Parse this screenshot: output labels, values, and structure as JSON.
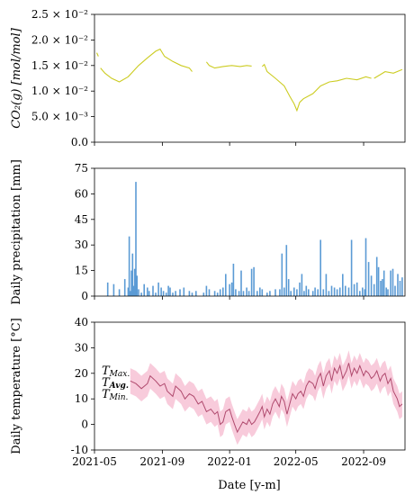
{
  "chart_data": [
    {
      "type": "line",
      "ylabel": "CO₂(g) [mol/mol]",
      "ylim": [
        0.0,
        0.025
      ],
      "yticks": [
        {
          "v": 0.025,
          "label": "2.5 × 10⁻²"
        },
        {
          "v": 0.02,
          "label": "2.0 × 10⁻²"
        },
        {
          "v": 0.015,
          "label": "1.5 × 10⁻²"
        },
        {
          "v": 0.01,
          "label": "1.0 × 10⁻²"
        },
        {
          "v": 0.005,
          "label": "5.0 × 10⁻³"
        },
        {
          "v": 0.0,
          "label": "0.0"
        }
      ],
      "color": "#cccc22",
      "segments": [
        [
          [
            "2021-05-05",
            0.0175
          ],
          [
            "2021-05-08",
            0.0168
          ]
        ],
        [
          [
            "2021-05-12",
            0.0145
          ],
          [
            "2021-05-20",
            0.0135
          ],
          [
            "2021-06-01",
            0.0125
          ],
          [
            "2021-06-15",
            0.0118
          ],
          [
            "2021-07-01",
            0.0128
          ],
          [
            "2021-07-20",
            0.015
          ],
          [
            "2021-08-05",
            0.0165
          ],
          [
            "2021-08-20",
            0.0178
          ],
          [
            "2021-08-28",
            0.0182
          ],
          [
            "2021-09-05",
            0.0168
          ],
          [
            "2021-09-20",
            0.0158
          ],
          [
            "2021-10-05",
            0.015
          ],
          [
            "2021-10-20",
            0.0145
          ],
          [
            "2021-10-25",
            0.0138
          ]
        ],
        [
          [
            "2021-11-20",
            0.0157
          ],
          [
            "2021-11-25",
            0.015
          ],
          [
            "2021-12-05",
            0.0145
          ],
          [
            "2021-12-20",
            0.0148
          ],
          [
            "2022-01-05",
            0.015
          ],
          [
            "2022-01-20",
            0.0148
          ],
          [
            "2022-02-01",
            0.015
          ],
          [
            "2022-02-10",
            0.0149
          ]
        ],
        [
          [
            "2022-03-01",
            0.0148
          ],
          [
            "2022-03-05",
            0.0152
          ],
          [
            "2022-03-10",
            0.0138
          ],
          [
            "2022-03-25",
            0.0125
          ],
          [
            "2022-04-10",
            0.011
          ],
          [
            "2022-04-20",
            0.009
          ],
          [
            "2022-04-28",
            0.0075
          ],
          [
            "2022-05-03",
            0.0062
          ],
          [
            "2022-05-08",
            0.0078
          ],
          [
            "2022-05-15",
            0.0085
          ],
          [
            "2022-06-01",
            0.0095
          ],
          [
            "2022-06-15",
            0.011
          ],
          [
            "2022-07-01",
            0.0118
          ],
          [
            "2022-07-15",
            0.012
          ],
          [
            "2022-08-01",
            0.0125
          ],
          [
            "2022-08-20",
            0.0122
          ],
          [
            "2022-09-05",
            0.0128
          ],
          [
            "2022-09-15",
            0.0125
          ]
        ],
        [
          [
            "2022-09-20",
            0.0125
          ],
          [
            "2022-10-01",
            0.0132
          ],
          [
            "2022-10-10",
            0.0138
          ],
          [
            "2022-10-25",
            0.0135
          ],
          [
            "2022-11-05",
            0.014
          ],
          [
            "2022-11-10",
            0.0142
          ]
        ]
      ]
    },
    {
      "type": "bar",
      "ylabel": "Daily precipitation [mm]",
      "ylim": [
        0,
        75
      ],
      "yticks": [
        75,
        60,
        45,
        30,
        15,
        0
      ],
      "color": "#5b9bd5",
      "bars": [
        [
          "2021-05-25",
          8
        ],
        [
          "2021-06-05",
          7
        ],
        [
          "2021-06-15",
          4
        ],
        [
          "2021-06-25",
          10
        ],
        [
          "2021-07-01",
          5
        ],
        [
          "2021-07-03",
          35
        ],
        [
          "2021-07-05",
          3
        ],
        [
          "2021-07-07",
          15
        ],
        [
          "2021-07-09",
          25
        ],
        [
          "2021-07-11",
          6
        ],
        [
          "2021-07-13",
          16
        ],
        [
          "2021-07-15",
          67
        ],
        [
          "2021-07-17",
          12
        ],
        [
          "2021-07-20",
          4
        ],
        [
          "2021-07-25",
          2
        ],
        [
          "2021-07-30",
          7
        ],
        [
          "2021-08-05",
          5
        ],
        [
          "2021-08-08",
          3
        ],
        [
          "2021-08-15",
          6
        ],
        [
          "2021-08-20",
          2
        ],
        [
          "2021-08-25",
          8
        ],
        [
          "2021-08-30",
          5
        ],
        [
          "2021-09-03",
          3
        ],
        [
          "2021-09-08",
          2
        ],
        [
          "2021-09-12",
          6
        ],
        [
          "2021-09-15",
          5
        ],
        [
          "2021-09-20",
          2
        ],
        [
          "2021-09-25",
          3
        ],
        [
          "2021-10-03",
          4
        ],
        [
          "2021-10-10",
          5
        ],
        [
          "2021-10-20",
          3
        ],
        [
          "2021-10-25",
          2
        ],
        [
          "2021-11-01",
          3
        ],
        [
          "2021-11-15",
          2
        ],
        [
          "2021-11-20",
          6
        ],
        [
          "2021-11-25",
          4
        ],
        [
          "2021-12-05",
          3
        ],
        [
          "2021-12-10",
          2
        ],
        [
          "2021-12-15",
          4
        ],
        [
          "2021-12-20",
          5
        ],
        [
          "2021-12-25",
          13
        ],
        [
          "2022-01-01",
          7
        ],
        [
          "2022-01-05",
          8
        ],
        [
          "2022-01-08",
          19
        ],
        [
          "2022-01-12",
          4
        ],
        [
          "2022-01-18",
          3
        ],
        [
          "2022-01-22",
          15
        ],
        [
          "2022-01-26",
          3
        ],
        [
          "2022-02-01",
          5
        ],
        [
          "2022-02-05",
          3
        ],
        [
          "2022-02-10",
          16
        ],
        [
          "2022-02-14",
          17
        ],
        [
          "2022-02-20",
          3
        ],
        [
          "2022-02-25",
          5
        ],
        [
          "2022-03-01",
          4
        ],
        [
          "2022-03-10",
          2
        ],
        [
          "2022-03-15",
          3
        ],
        [
          "2022-03-25",
          4
        ],
        [
          "2022-04-02",
          4
        ],
        [
          "2022-04-06",
          25
        ],
        [
          "2022-04-10",
          5
        ],
        [
          "2022-04-14",
          30
        ],
        [
          "2022-04-18",
          10
        ],
        [
          "2022-04-22",
          3
        ],
        [
          "2022-04-28",
          5
        ],
        [
          "2022-05-03",
          4
        ],
        [
          "2022-05-08",
          8
        ],
        [
          "2022-05-12",
          13
        ],
        [
          "2022-05-16",
          3
        ],
        [
          "2022-05-20",
          6
        ],
        [
          "2022-05-24",
          4
        ],
        [
          "2022-06-01",
          3
        ],
        [
          "2022-06-05",
          5
        ],
        [
          "2022-06-10",
          4
        ],
        [
          "2022-06-15",
          33
        ],
        [
          "2022-06-20",
          4
        ],
        [
          "2022-06-25",
          13
        ],
        [
          "2022-06-30",
          3
        ],
        [
          "2022-07-05",
          6
        ],
        [
          "2022-07-10",
          5
        ],
        [
          "2022-07-15",
          4
        ],
        [
          "2022-07-20",
          5
        ],
        [
          "2022-07-25",
          13
        ],
        [
          "2022-07-30",
          6
        ],
        [
          "2022-08-05",
          5
        ],
        [
          "2022-08-10",
          33
        ],
        [
          "2022-08-15",
          7
        ],
        [
          "2022-08-20",
          8
        ],
        [
          "2022-08-25",
          3
        ],
        [
          "2022-08-30",
          5
        ],
        [
          "2022-09-03",
          4
        ],
        [
          "2022-09-05",
          34
        ],
        [
          "2022-09-10",
          20
        ],
        [
          "2022-09-15",
          12
        ],
        [
          "2022-09-20",
          7
        ],
        [
          "2022-09-25",
          23
        ],
        [
          "2022-09-28",
          17
        ],
        [
          "2022-10-02",
          9
        ],
        [
          "2022-10-05",
          10
        ],
        [
          "2022-10-08",
          15
        ],
        [
          "2022-10-12",
          5
        ],
        [
          "2022-10-15",
          4
        ],
        [
          "2022-10-20",
          15
        ],
        [
          "2022-10-24",
          16
        ],
        [
          "2022-10-28",
          6
        ],
        [
          "2022-11-02",
          13
        ],
        [
          "2022-11-06",
          9
        ],
        [
          "2022-11-10",
          11
        ]
      ]
    },
    {
      "type": "area",
      "ylabel": "Daily temperature [°C]",
      "xlabel": "Date [y-m]",
      "ylim": [
        -10,
        40
      ],
      "yticks": [
        40,
        30,
        20,
        10,
        0,
        -10
      ],
      "xticks": [
        "2021-05",
        "2021-09",
        "2022-01",
        "2022-05",
        "2022-09"
      ],
      "xlim": [
        "2021-05-01",
        "2022-11-15"
      ],
      "colors": {
        "band": "#f5b9cf",
        "avg": "#b04a6e",
        "label": "#d4a0b2"
      },
      "legend": [
        {
          "main": "T",
          "sub": "Max.",
          "avg": false
        },
        {
          "main": "T",
          "sub": "Avg.",
          "avg": true
        },
        {
          "main": "T",
          "sub": "Min.",
          "avg": false
        }
      ],
      "avg": [
        [
          "2021-07-05",
          17
        ],
        [
          "2021-07-15",
          16
        ],
        [
          "2021-07-25",
          14
        ],
        [
          "2021-08-05",
          16
        ],
        [
          "2021-08-10",
          19
        ],
        [
          "2021-08-20",
          17
        ],
        [
          "2021-08-28",
          15
        ],
        [
          "2021-09-05",
          16
        ],
        [
          "2021-09-10",
          13
        ],
        [
          "2021-09-20",
          11
        ],
        [
          "2021-09-25",
          15
        ],
        [
          "2021-10-05",
          13
        ],
        [
          "2021-10-12",
          10
        ],
        [
          "2021-10-20",
          12
        ],
        [
          "2021-10-28",
          11
        ],
        [
          "2021-11-05",
          8
        ],
        [
          "2021-11-12",
          9
        ],
        [
          "2021-11-20",
          5
        ],
        [
          "2021-11-28",
          6
        ],
        [
          "2021-12-05",
          4
        ],
        [
          "2021-12-10",
          5
        ],
        [
          "2021-12-15",
          0
        ],
        [
          "2021-12-20",
          1
        ],
        [
          "2021-12-25",
          5
        ],
        [
          "2022-01-01",
          6
        ],
        [
          "2022-01-05",
          3
        ],
        [
          "2022-01-10",
          0
        ],
        [
          "2022-01-15",
          -3
        ],
        [
          "2022-01-20",
          -1
        ],
        [
          "2022-01-25",
          1
        ],
        [
          "2022-02-01",
          0
        ],
        [
          "2022-02-05",
          2
        ],
        [
          "2022-02-10",
          0
        ],
        [
          "2022-02-15",
          1
        ],
        [
          "2022-02-20",
          3
        ],
        [
          "2022-02-25",
          5
        ],
        [
          "2022-03-01",
          7
        ],
        [
          "2022-03-05",
          3
        ],
        [
          "2022-03-10",
          6
        ],
        [
          "2022-03-15",
          4
        ],
        [
          "2022-03-20",
          8
        ],
        [
          "2022-03-25",
          10
        ],
        [
          "2022-04-01",
          7
        ],
        [
          "2022-04-05",
          11
        ],
        [
          "2022-04-10",
          9
        ],
        [
          "2022-04-15",
          4
        ],
        [
          "2022-04-20",
          8
        ],
        [
          "2022-04-25",
          12
        ],
        [
          "2022-05-01",
          10
        ],
        [
          "2022-05-05",
          12
        ],
        [
          "2022-05-10",
          13
        ],
        [
          "2022-05-15",
          11
        ],
        [
          "2022-05-20",
          15
        ],
        [
          "2022-05-25",
          17
        ],
        [
          "2022-06-01",
          16
        ],
        [
          "2022-06-05",
          14
        ],
        [
          "2022-06-10",
          18
        ],
        [
          "2022-06-15",
          20
        ],
        [
          "2022-06-20",
          15
        ],
        [
          "2022-06-25",
          19
        ],
        [
          "2022-07-01",
          21
        ],
        [
          "2022-07-05",
          17
        ],
        [
          "2022-07-10",
          22
        ],
        [
          "2022-07-15",
          20
        ],
        [
          "2022-07-20",
          23
        ],
        [
          "2022-07-25",
          18
        ],
        [
          "2022-08-01",
          21
        ],
        [
          "2022-08-05",
          24
        ],
        [
          "2022-08-10",
          19
        ],
        [
          "2022-08-15",
          22
        ],
        [
          "2022-08-20",
          20
        ],
        [
          "2022-08-25",
          23
        ],
        [
          "2022-09-01",
          19
        ],
        [
          "2022-09-05",
          21
        ],
        [
          "2022-09-10",
          20
        ],
        [
          "2022-09-15",
          18
        ],
        [
          "2022-09-20",
          19
        ],
        [
          "2022-09-25",
          21
        ],
        [
          "2022-10-01",
          17
        ],
        [
          "2022-10-05",
          19
        ],
        [
          "2022-10-10",
          20
        ],
        [
          "2022-10-15",
          16
        ],
        [
          "2022-10-20",
          18
        ],
        [
          "2022-10-25",
          13
        ],
        [
          "2022-11-01",
          10
        ],
        [
          "2022-11-05",
          7
        ],
        [
          "2022-11-10",
          8
        ]
      ],
      "band_spread": 5
    }
  ]
}
